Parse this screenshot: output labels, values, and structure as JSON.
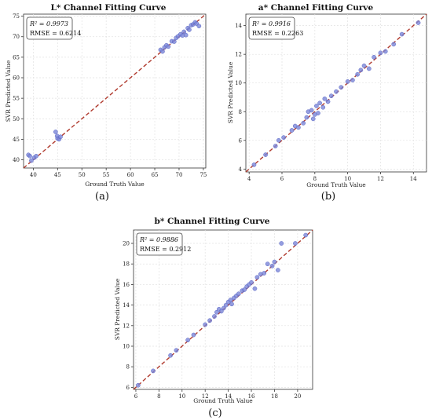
{
  "chart_data": [
    {
      "type": "scatter",
      "title": "L* Channel Fitting Curve",
      "xlabel": "Ground Truth Value",
      "ylabel": "SVR Predicted Value",
      "panel_label": "(a)",
      "stats": {
        "r2_label": "R² = 0.9973",
        "rmse_label": "RMSE = 0.6214"
      },
      "xlim": [
        38,
        75.5
      ],
      "ylim": [
        38,
        75.5
      ],
      "xticks": [
        40,
        45,
        50,
        55,
        60,
        65,
        70,
        75
      ],
      "yticks": [
        40,
        45,
        50,
        55,
        60,
        65,
        70,
        75
      ],
      "grid": true,
      "reference_line": "y = x (dashed)",
      "points": [
        [
          39.0,
          41.2
        ],
        [
          39.3,
          40.9
        ],
        [
          39.6,
          39.8
        ],
        [
          40.2,
          40.5
        ],
        [
          40.6,
          40.9
        ],
        [
          44.6,
          46.8
        ],
        [
          44.9,
          45.8
        ],
        [
          45.0,
          45.2
        ],
        [
          45.3,
          45.0
        ],
        [
          45.6,
          45.6
        ],
        [
          66.2,
          66.8
        ],
        [
          66.6,
          66.4
        ],
        [
          67.0,
          67.4
        ],
        [
          67.4,
          67.9
        ],
        [
          67.8,
          67.6
        ],
        [
          68.5,
          68.9
        ],
        [
          69.0,
          68.8
        ],
        [
          69.4,
          69.7
        ],
        [
          69.8,
          70.1
        ],
        [
          70.3,
          70.6
        ],
        [
          70.7,
          70.3
        ],
        [
          71.0,
          71.2
        ],
        [
          71.4,
          70.4
        ],
        [
          71.8,
          72.1
        ],
        [
          72.1,
          71.7
        ],
        [
          72.5,
          72.8
        ],
        [
          72.9,
          73.0
        ],
        [
          73.3,
          73.5
        ],
        [
          73.6,
          73.2
        ],
        [
          74.1,
          72.6
        ]
      ]
    },
    {
      "type": "scatter",
      "title": "a* Channel Fitting Curve",
      "xlabel": "Ground Truth Value",
      "ylabel": "SVR Predicted Value",
      "panel_label": "(b)",
      "stats": {
        "r2_label": "R² = 0.9916",
        "rmse_label": "RMSE = 0.2263"
      },
      "xlim": [
        3.8,
        14.8
      ],
      "ylim": [
        3.8,
        14.8
      ],
      "xticks": [
        4,
        6,
        8,
        10,
        12,
        14
      ],
      "yticks": [
        4,
        6,
        8,
        10,
        12,
        14
      ],
      "grid": true,
      "reference_line": "y = x (dashed)",
      "points": [
        [
          4.3,
          4.3
        ],
        [
          5.0,
          5.0
        ],
        [
          5.6,
          5.6
        ],
        [
          5.8,
          6.0
        ],
        [
          6.1,
          6.2
        ],
        [
          6.6,
          6.7
        ],
        [
          6.8,
          7.0
        ],
        [
          7.0,
          6.9
        ],
        [
          7.3,
          7.2
        ],
        [
          7.5,
          7.6
        ],
        [
          7.6,
          8.0
        ],
        [
          7.8,
          8.1
        ],
        [
          7.9,
          7.5
        ],
        [
          8.0,
          7.8
        ],
        [
          8.1,
          8.4
        ],
        [
          8.2,
          7.9
        ],
        [
          8.3,
          8.6
        ],
        [
          8.5,
          8.3
        ],
        [
          8.6,
          8.9
        ],
        [
          8.8,
          8.7
        ],
        [
          9.0,
          9.1
        ],
        [
          9.3,
          9.4
        ],
        [
          9.6,
          9.7
        ],
        [
          10.0,
          10.1
        ],
        [
          10.3,
          10.2
        ],
        [
          10.6,
          10.6
        ],
        [
          10.8,
          10.9
        ],
        [
          11.0,
          11.2
        ],
        [
          11.3,
          11.0
        ],
        [
          11.6,
          11.8
        ],
        [
          12.0,
          12.1
        ],
        [
          12.3,
          12.2
        ],
        [
          12.8,
          12.7
        ],
        [
          13.3,
          13.4
        ],
        [
          14.3,
          14.2
        ]
      ]
    },
    {
      "type": "scatter",
      "title": "b* Channel Fitting Curve",
      "xlabel": "Ground Truth Value",
      "ylabel": "SVR Predicted Value",
      "panel_label": "(c)",
      "stats": {
        "r2_label": "R² = 0.9886",
        "rmse_label": "RMSE = 0.2912"
      },
      "xlim": [
        5.8,
        21.3
      ],
      "ylim": [
        5.8,
        21.3
      ],
      "xticks": [
        6,
        8,
        10,
        12,
        14,
        16,
        18,
        20
      ],
      "yticks": [
        6,
        8,
        10,
        12,
        14,
        16,
        18,
        20
      ],
      "grid": true,
      "reference_line": "y = x (dashed)",
      "points": [
        [
          6.2,
          6.2
        ],
        [
          7.5,
          7.6
        ],
        [
          9.0,
          9.1
        ],
        [
          9.5,
          9.6
        ],
        [
          10.5,
          10.6
        ],
        [
          11.0,
          11.1
        ],
        [
          12.0,
          12.1
        ],
        [
          12.4,
          12.5
        ],
        [
          12.8,
          12.9
        ],
        [
          13.0,
          13.3
        ],
        [
          13.2,
          13.6
        ],
        [
          13.4,
          13.4
        ],
        [
          13.6,
          13.7
        ],
        [
          13.8,
          14.0
        ],
        [
          14.0,
          14.3
        ],
        [
          14.2,
          14.5
        ],
        [
          14.3,
          14.1
        ],
        [
          14.5,
          14.7
        ],
        [
          14.7,
          14.9
        ],
        [
          14.9,
          15.1
        ],
        [
          15.2,
          15.4
        ],
        [
          15.4,
          15.5
        ],
        [
          15.6,
          15.8
        ],
        [
          15.8,
          16.0
        ],
        [
          16.0,
          16.2
        ],
        [
          16.3,
          15.6
        ],
        [
          16.5,
          16.7
        ],
        [
          16.8,
          17.0
        ],
        [
          17.1,
          17.1
        ],
        [
          17.4,
          18.0
        ],
        [
          17.8,
          17.8
        ],
        [
          18.0,
          18.2
        ],
        [
          18.3,
          17.4
        ],
        [
          18.6,
          20.0
        ],
        [
          19.8,
          20.0
        ],
        [
          20.7,
          20.8
        ]
      ]
    }
  ],
  "colors": {
    "point_fill": "#7b86d8",
    "point_stroke": "#5b67c4",
    "fit_line": "#b03a2e",
    "grid": "#e2e2e2",
    "axis": "#333333"
  }
}
